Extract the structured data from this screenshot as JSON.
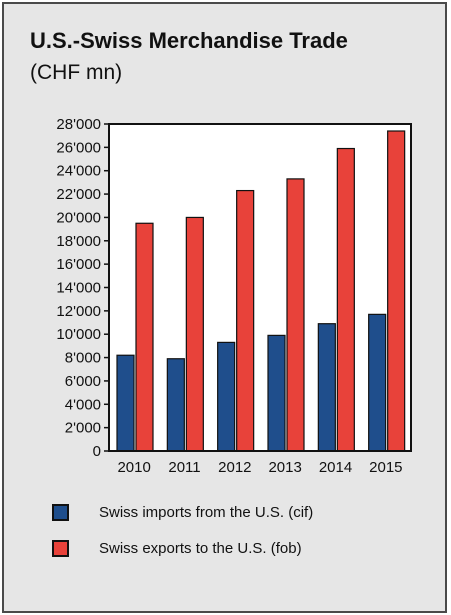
{
  "chart_data": {
    "type": "bar",
    "title": "U.S.-Swiss Merchandise Trade",
    "subtitle": "(CHF mn)",
    "xlabel": "",
    "ylabel": "",
    "ylim": [
      0,
      28000
    ],
    "yticks": [
      0,
      2000,
      4000,
      6000,
      8000,
      10000,
      12000,
      14000,
      16000,
      18000,
      20000,
      22000,
      24000,
      26000,
      28000
    ],
    "ytick_labels": [
      "0",
      "2'000",
      "4'000",
      "6'000",
      "8'000",
      "10'000",
      "12'000",
      "14'000",
      "16'000",
      "18'000",
      "20'000",
      "22'000",
      "24'000",
      "26'000",
      "28'000"
    ],
    "categories": [
      "2010",
      "2011",
      "2012",
      "2013",
      "2014",
      "2015"
    ],
    "series": [
      {
        "name": "Swiss imports from the U.S. (cif)",
        "color": "#1f4e8c",
        "values": [
          8200,
          7900,
          9300,
          9900,
          10900,
          11700
        ]
      },
      {
        "name": "Swiss exports to the U.S. (fob)",
        "color": "#e8423a",
        "values": [
          19500,
          20000,
          22300,
          23300,
          25900,
          27400
        ]
      }
    ],
    "grid": false,
    "legend_position": "bottom"
  }
}
